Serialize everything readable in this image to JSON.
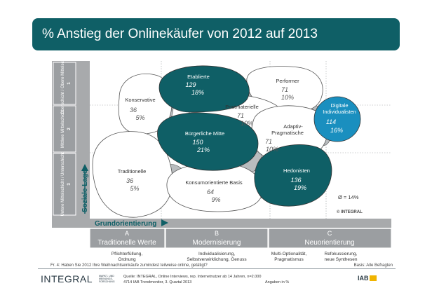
{
  "title": "% Anstieg der Onlinekäufer von 2012 auf 2013",
  "axes": {
    "y_label": "Soziale Lage",
    "x_label": "Grundorientierung"
  },
  "rows": [
    {
      "id": "1",
      "label": "Oberschicht / Obere Mittelschicht"
    },
    {
      "id": "2",
      "label": "Mittlere Mittelschicht"
    },
    {
      "id": "3",
      "label": "Untere Mittelschicht / Unterschicht"
    }
  ],
  "columns": [
    {
      "letter": "A",
      "title": "Traditionelle Werte",
      "desc1": "Pflichterfüllung,",
      "desc2": "Ordnung"
    },
    {
      "letter": "B",
      "title": "Modernisierung",
      "desc1": "Individualisierung,",
      "desc2": "Selbstverwirklichung, Genuss"
    },
    {
      "letter": "C",
      "title": "Neuorientierung",
      "desc1": "Multi-Optionalität,",
      "desc1b": "Refokussierung,",
      "desc2": "Pragmatismus",
      "desc2b": "neue Synthesen"
    }
  ],
  "milieus": [
    {
      "name": "Etablierte",
      "value": "129",
      "pct": "18%",
      "fill": "#0f5f66"
    },
    {
      "name": "Performer",
      "value": "71",
      "pct": "10%",
      "fill": "#ffffff"
    },
    {
      "name": "Konservative",
      "value": "36",
      "pct": "5%",
      "fill": "#ffffff"
    },
    {
      "name": "Postmaterielle",
      "value": "71",
      "pct": "10%",
      "fill": "#ffffff"
    },
    {
      "name": "Digitale Individualisten",
      "line1": "Digitale",
      "line2": "Individualisten",
      "value": "114",
      "pct": "16%",
      "fill": "#1a8fbf"
    },
    {
      "name": "Bürgerliche Mitte",
      "value": "150",
      "pct": "21%",
      "fill": "#0f5f66"
    },
    {
      "name": "Adaptiv-Pragmatische",
      "line1": "Adaptiv-",
      "line2": "Pragmatische",
      "value": "71",
      "pct": "10%",
      "fill": "#ffffff"
    },
    {
      "name": "Traditionelle",
      "value": "36",
      "pct": "5%",
      "fill": "#ffffff"
    },
    {
      "name": "Konsumorientierte Basis",
      "value": "64",
      "pct": "9%",
      "fill": "#ffffff"
    },
    {
      "name": "Hedonisten",
      "value": "136",
      "pct": "19%",
      "fill": "#0f5f66"
    }
  ],
  "average": "Ø = 14%",
  "chart_copyright": "© INTEGRAL",
  "question": "Fr. 4: Haben Sie 2012 Ihre Weihnachtseinkäufe zumindest teilweise online, getätigt?",
  "basis": "Basis: Alle Befragten",
  "footer": {
    "logo": "INTEGRAL",
    "logo_sub1": "MARKT- UND",
    "logo_sub2": "MEINUNGS-",
    "logo_sub3": "FORSCHUNG",
    "source1": "Quelle: INTEGRAL, Online Interviews, rep. Internetnutzer ab 14 Jahren, n=2.000",
    "source2": "4714 IAB Trendmonitor, 3. Quartal 2013",
    "unit": "Angaben in %",
    "iab": "IAB"
  },
  "colors": {
    "teal": "#0f5f66",
    "blue": "#1a8fbf",
    "overlap": "#b9bcbe",
    "panel": "#a8aaac"
  }
}
